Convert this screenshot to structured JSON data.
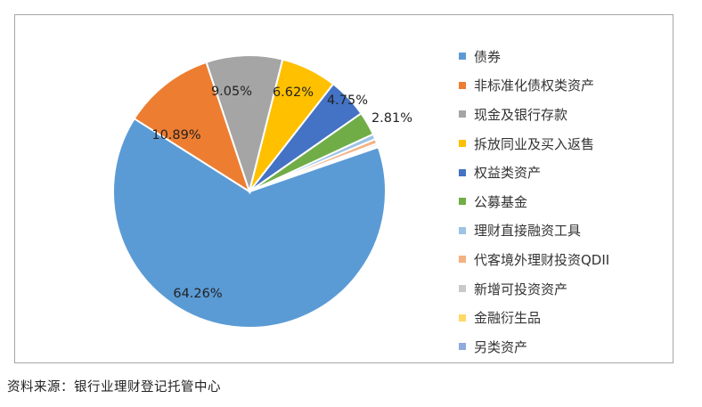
{
  "chart_data": {
    "type": "pie",
    "categories": [
      "债券",
      "非标准化债权类资产",
      "现金及银行存款",
      "拆放同业及买入返售",
      "权益类资产",
      "公募基金",
      "理财直接融资工具",
      "代客境外理财投资QDII",
      "新增可投资资产",
      "金融衍生品",
      "另类资产"
    ],
    "values": [
      64.26,
      10.89,
      9.05,
      6.62,
      4.75,
      2.81,
      0.62,
      0.55,
      0.25,
      0.12,
      0.08
    ],
    "data_labels": [
      "64.26%",
      "10.89%",
      "9.05%",
      "6.62%",
      "4.75%",
      "2.81%",
      "",
      "",
      "",
      "",
      ""
    ],
    "colors": [
      "#5b9bd5",
      "#ed7d31",
      "#a5a5a5",
      "#ffc000",
      "#4472c4",
      "#70ad47",
      "#9dc3e6",
      "#f4b183",
      "#c9c9c9",
      "#ffd966",
      "#8faadc"
    ],
    "legend_position": "right"
  },
  "source_note": "资料来源：银行业理财登记托管中心"
}
